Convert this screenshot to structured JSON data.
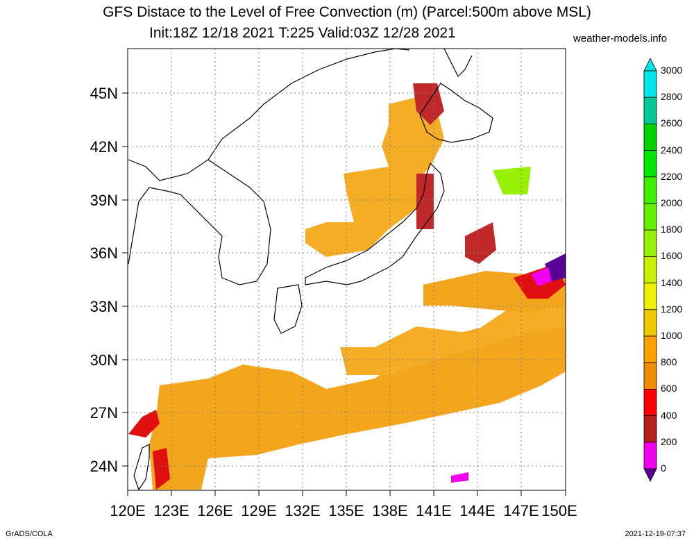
{
  "header": {
    "title": "GFS Distace to the Level of Free Convection (m) (Parcel:500m above MSL)",
    "subtitle": "Init:18Z 12/18 2021 T:225 Valid:03Z 12/28 2021",
    "site": "weather-models.info"
  },
  "footer": {
    "left": "GrADS/COLA",
    "right": "2021-12-19-07:37"
  },
  "map": {
    "lat_labels": [
      "45N",
      "42N",
      "39N",
      "36N",
      "33N",
      "30N",
      "27N",
      "24N"
    ],
    "lon_labels": [
      "120E",
      "123E",
      "126E",
      "129E",
      "132E",
      "135E",
      "138E",
      "141E",
      "144E",
      "147E",
      "150E"
    ],
    "grid": true
  },
  "colorbar": {
    "labels": [
      "3000",
      "2800",
      "2600",
      "2400",
      "2200",
      "2000",
      "1800",
      "1600",
      "1400",
      "1200",
      "1000",
      "800",
      "600",
      "400",
      "200",
      "0"
    ],
    "colors": [
      "#00e6e6",
      "#00c896",
      "#00d200",
      "#00e600",
      "#3cf000",
      "#64f000",
      "#96f000",
      "#c8f000",
      "#f0f000",
      "#f0c800",
      "#ffa000",
      "#f08c00",
      "#ff0000",
      "#b41e1e",
      "#f000f0",
      "#5a0096"
    ],
    "top_arrow_color": "#00e6e6",
    "bottom_arrow_color": "#5a0096"
  }
}
